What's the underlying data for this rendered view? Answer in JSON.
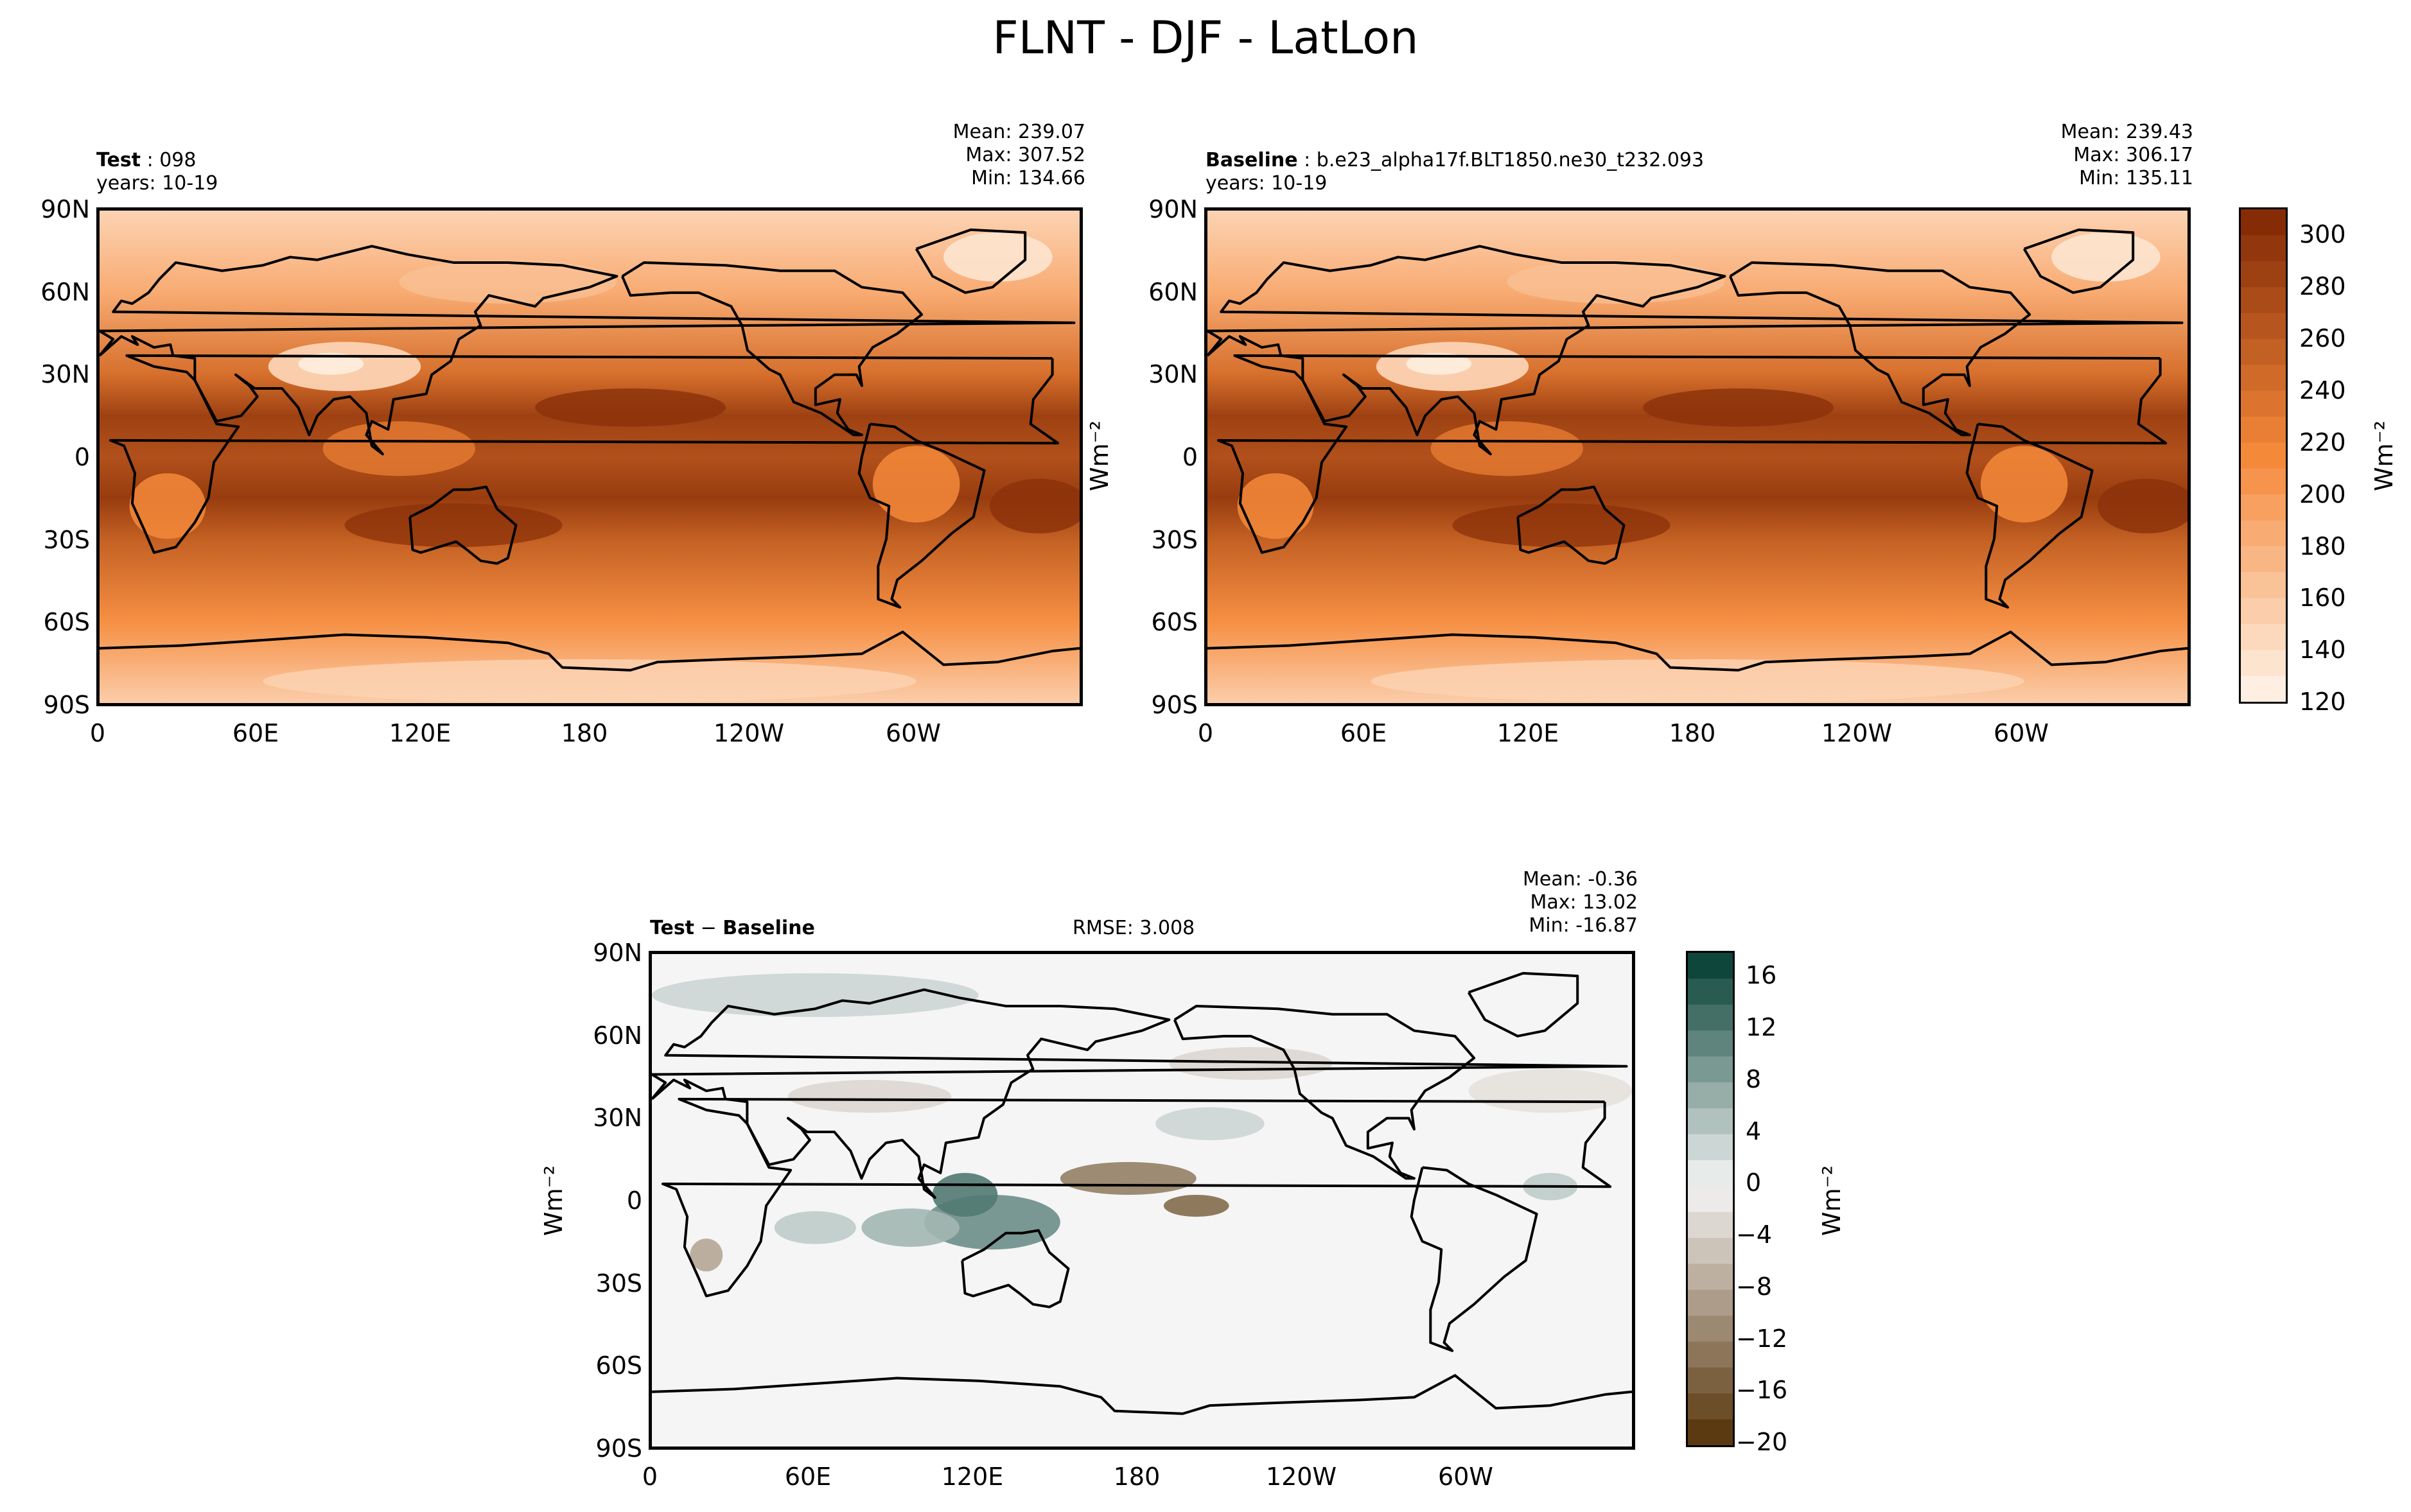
{
  "figure_title": "FLNT - DJF - LatLon",
  "panels": {
    "test": {
      "name_label": "Test",
      "name_value": "098",
      "years": "years: 10-19",
      "stats": {
        "mean": "Mean: 239.07",
        "max": "Max: 307.52",
        "min": "Min: 134.66"
      }
    },
    "baseline": {
      "name_label": "Baseline",
      "name_value": "b.e23_alpha17f.BLT1850.ne30_t232.093",
      "years": "years: 10-19",
      "stats": {
        "mean": "Mean: 239.43",
        "max": "Max: 306.17",
        "min": "Min: 135.11"
      }
    },
    "diff": {
      "name_label": "Test",
      "name_op": "−",
      "name_label2": "Baseline",
      "rmse": "RMSE: 3.008",
      "stats": {
        "mean": "Mean: -0.36",
        "max": "Max: 13.02",
        "min": "Min: -16.87"
      }
    }
  },
  "axes": {
    "lat_ticks": [
      "90N",
      "60N",
      "30N",
      "0",
      "30S",
      "60S",
      "90S"
    ],
    "lon_ticks": [
      "0",
      "60E",
      "120E",
      "180",
      "120W",
      "60W"
    ]
  },
  "unit_label": "Wm⁻²",
  "colorbars": {
    "main": {
      "ticks": [
        "300",
        "280",
        "260",
        "240",
        "220",
        "200",
        "180",
        "160",
        "140",
        "120"
      ],
      "range": [
        120,
        310
      ]
    },
    "diff": {
      "ticks": [
        "16",
        "12",
        "8",
        "4",
        "0",
        "−4",
        "−8",
        "−12",
        "−16",
        "−20"
      ],
      "range": [
        -20,
        18
      ]
    }
  },
  "colors": {
    "main_low": "#fff5eb",
    "main_mid": "#f5893a",
    "main_high": "#7f2704",
    "diff_low": "#543005",
    "diff_zero": "#f5f5f5",
    "diff_high": "#003c30"
  },
  "chart_data": [
    {
      "type": "heatmap",
      "title": "Test: 098",
      "xlabel": "",
      "ylabel": "",
      "x_ticks": [
        "0",
        "60E",
        "120E",
        "180",
        "120W",
        "60W"
      ],
      "y_ticks": [
        "90N",
        "60N",
        "30N",
        "0",
        "30S",
        "60S",
        "90S"
      ],
      "colorbar_range": [
        120,
        310
      ],
      "stats": {
        "mean": 239.07,
        "max": 307.52,
        "min": 134.66
      },
      "lat_profile": {
        "lat": [
          90,
          60,
          30,
          15,
          0,
          -15,
          -30,
          -60,
          -90
        ],
        "value": [
          150,
          185,
          240,
          285,
          270,
          290,
          255,
          210,
          155
        ]
      }
    },
    {
      "type": "heatmap",
      "title": "Baseline: b.e23_alpha17f.BLT1850.ne30_t232.093",
      "xlabel": "",
      "ylabel": "",
      "x_ticks": [
        "0",
        "60E",
        "120E",
        "180",
        "120W",
        "60W"
      ],
      "y_ticks": [
        "90N",
        "60N",
        "30N",
        "0",
        "30S",
        "60S",
        "90S"
      ],
      "colorbar_range": [
        120,
        310
      ],
      "stats": {
        "mean": 239.43,
        "max": 306.17,
        "min": 135.11
      },
      "lat_profile": {
        "lat": [
          90,
          60,
          30,
          15,
          0,
          -15,
          -30,
          -60,
          -90
        ],
        "value": [
          150,
          185,
          240,
          285,
          270,
          290,
          255,
          210,
          155
        ]
      }
    },
    {
      "type": "heatmap",
      "title": "Test − Baseline",
      "xlabel": "",
      "ylabel": "",
      "x_ticks": [
        "0",
        "60E",
        "120E",
        "180",
        "120W",
        "60W"
      ],
      "y_ticks": [
        "90N",
        "60N",
        "30N",
        "0",
        "30S",
        "60S",
        "90S"
      ],
      "colorbar_range": [
        -20,
        18
      ],
      "stats": {
        "mean": -0.36,
        "max": 13.02,
        "min": -16.87,
        "rmse": 3.008
      }
    }
  ]
}
